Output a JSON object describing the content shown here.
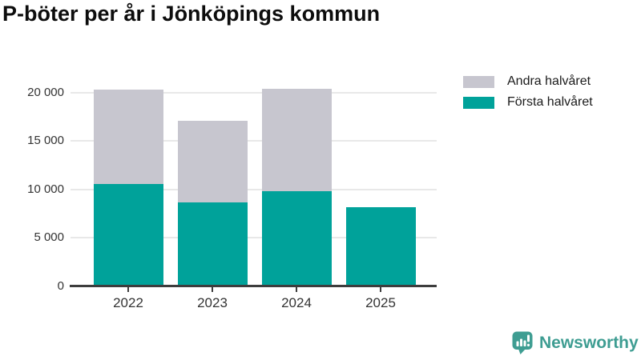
{
  "title": "P-böter per år i Jönköpings kommun",
  "legend": [
    {
      "label": "Andra halvåret",
      "color": "#c7c6cf"
    },
    {
      "label": "Första halvåret",
      "color": "#00a29a"
    }
  ],
  "chart_data": {
    "type": "bar",
    "stacked": true,
    "title": "P-böter per år i Jönköpings kommun",
    "categories": [
      "2022",
      "2023",
      "2024",
      "2025"
    ],
    "series": [
      {
        "name": "Första halvåret",
        "color": "#00a29a",
        "values": [
          10600,
          8700,
          9800,
          8200
        ]
      },
      {
        "name": "Andra halvåret",
        "color": "#c7c6cf",
        "values": [
          9700,
          8400,
          10600,
          0
        ]
      }
    ],
    "totals": [
      20300,
      17100,
      20400,
      8200
    ],
    "xlabel": "",
    "ylabel": "",
    "ylim": [
      0,
      21300
    ],
    "yticks": [
      0,
      5000,
      10000,
      15000,
      20000
    ],
    "ytick_labels": [
      "0",
      "5 000",
      "10 000",
      "15 000",
      "20 000"
    ],
    "grid": true,
    "legend_position": "top-right"
  },
  "branding": {
    "logo_text": "Newsworthy",
    "logo_color": "#3e9d92"
  },
  "colors": {
    "background": "#ffffff",
    "title_text": "#0d0d0d",
    "axis_line": "#3d3d3d",
    "tick_text": "#333333",
    "gridline": "#e8e8e8"
  }
}
